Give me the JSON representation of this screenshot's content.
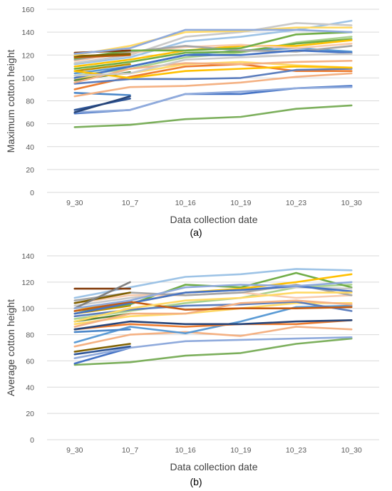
{
  "chart_data": [
    {
      "type": "line",
      "panel_label": "(a)",
      "xlabel": "Data collection date",
      "ylabel": "Maximum cotton height",
      "categories": [
        "9_30",
        "10_7",
        "10_16",
        "10_19",
        "10_23",
        "10_30"
      ],
      "ylim": [
        0,
        160
      ],
      "yticks": [
        0,
        20,
        40,
        60,
        80,
        100,
        120,
        140,
        160
      ],
      "grid": true,
      "legend": "none",
      "series": [
        {
          "color": "#7caf5c",
          "values": [
            57,
            59,
            64,
            66,
            73,
            76
          ]
        },
        {
          "color": "#4472c4",
          "values": [
            69,
            72,
            86,
            86,
            91,
            93
          ]
        },
        {
          "color": "#8faadc",
          "values": [
            70,
            72,
            86,
            88,
            91,
            92
          ]
        },
        {
          "color": "#2e5597",
          "values": [
            72,
            82,
            null,
            null,
            null,
            null
          ]
        },
        {
          "color": "#4a86c8",
          "values": [
            87,
            85,
            null,
            null,
            null,
            null
          ]
        },
        {
          "color": "#f4b183",
          "values": [
            84,
            92,
            93,
            96,
            101,
            104
          ]
        },
        {
          "color": "#ed7d31",
          "values": [
            90,
            101,
            110,
            112,
            106,
            106
          ]
        },
        {
          "color": "#5b7dbd",
          "values": [
            95,
            99,
            99,
            100,
            107,
            108
          ]
        },
        {
          "color": "#ffd966",
          "values": [
            100,
            104,
            112,
            114,
            111,
            109
          ]
        },
        {
          "color": "#548235",
          "values": [
            98,
            105,
            null,
            null,
            null,
            null
          ]
        },
        {
          "color": "#a9d18e",
          "values": [
            102,
            108,
            118,
            122,
            131,
            136
          ]
        },
        {
          "color": "#5b9bd5",
          "values": [
            104,
            110,
            120,
            124,
            126,
            123
          ]
        },
        {
          "color": "#bf9000",
          "values": [
            106,
            112,
            null,
            null,
            null,
            null
          ]
        },
        {
          "color": "#70ad47",
          "values": [
            108,
            114,
            122,
            123,
            130,
            134
          ]
        },
        {
          "color": "#ffc000",
          "values": [
            110,
            116,
            124,
            128,
            128,
            133
          ]
        },
        {
          "color": "#9dc3e6",
          "values": [
            112,
            118,
            132,
            136,
            142,
            150
          ]
        },
        {
          "color": "#c9c9c9",
          "values": [
            113,
            120,
            136,
            140,
            148,
            146
          ]
        },
        {
          "color": "#f8cbad",
          "values": [
            115,
            122,
            127,
            129,
            126,
            130
          ]
        },
        {
          "color": "#a5a5a5",
          "values": [
            116,
            123,
            128,
            124,
            123,
            128
          ]
        },
        {
          "color": "#70ad47",
          "values": [
            117,
            124,
            124,
            126,
            138,
            140
          ]
        },
        {
          "color": "#c55a11",
          "values": [
            118,
            120,
            null,
            null,
            null,
            null
          ]
        },
        {
          "color": "#843c0c",
          "values": [
            122,
            124,
            null,
            null,
            null,
            null
          ]
        },
        {
          "color": "#7f6000",
          "values": [
            119,
            121,
            null,
            null,
            null,
            null
          ]
        },
        {
          "color": "#ffd966",
          "values": [
            120,
            128,
            140,
            141,
            144,
            144
          ]
        },
        {
          "color": "#8faadc",
          "values": [
            121,
            126,
            142,
            142,
            142,
            140
          ]
        },
        {
          "color": "#4472c4",
          "values": [
            100,
            110,
            120,
            120,
            124,
            122
          ]
        },
        {
          "color": "#f4b183",
          "values": [
            96,
            108,
            113,
            112,
            114,
            115
          ]
        },
        {
          "color": "#ffc000",
          "values": [
            106,
            100,
            106,
            108,
            110,
            109
          ]
        },
        {
          "color": "#c9c9c9",
          "values": [
            102,
            104,
            116,
            118,
            120,
            121
          ]
        },
        {
          "color": "#264478",
          "values": [
            70,
            84,
            null,
            null,
            null,
            null
          ]
        }
      ]
    },
    {
      "type": "line",
      "panel_label": "(b)",
      "xlabel": "Data collection date",
      "ylabel": "Average cotton height",
      "categories": [
        "9_30",
        "10_7",
        "10_16",
        "10_19",
        "10_23",
        "10_30"
      ],
      "ylim": [
        0,
        140
      ],
      "yticks": [
        0,
        20,
        40,
        60,
        80,
        100,
        120,
        140
      ],
      "grid": true,
      "legend": "none",
      "series": [
        {
          "color": "#7caf5c",
          "values": [
            57,
            59,
            64,
            66,
            73,
            77
          ]
        },
        {
          "color": "#4472c4",
          "values": [
            58,
            70,
            null,
            null,
            null,
            null
          ]
        },
        {
          "color": "#8faadc",
          "values": [
            62,
            70,
            75,
            76,
            77,
            78
          ]
        },
        {
          "color": "#2e5597",
          "values": [
            65,
            71,
            null,
            null,
            null,
            null
          ]
        },
        {
          "color": "#7f6000",
          "values": [
            67,
            73,
            null,
            null,
            null,
            null
          ]
        },
        {
          "color": "#f4b183",
          "values": [
            71,
            80,
            82,
            79,
            86,
            84
          ]
        },
        {
          "color": "#5b9bd5",
          "values": [
            74,
            86,
            81,
            90,
            101,
            102
          ]
        },
        {
          "color": "#4a86c8",
          "values": [
            82,
            84,
            null,
            null,
            null,
            null
          ]
        },
        {
          "color": "#ed7d31",
          "values": [
            84,
            88,
            86,
            88,
            88,
            91
          ]
        },
        {
          "color": "#ffd966",
          "values": [
            88,
            94,
            96,
            100,
            104,
            104
          ]
        },
        {
          "color": "#548235",
          "values": [
            90,
            96,
            null,
            null,
            null,
            null
          ]
        },
        {
          "color": "#a9d18e",
          "values": [
            92,
            98,
            104,
            108,
            116,
            118
          ]
        },
        {
          "color": "#5b7dbd",
          "values": [
            94,
            99,
            102,
            103,
            105,
            98
          ]
        },
        {
          "color": "#bf9000",
          "values": [
            96,
            102,
            null,
            null,
            null,
            null
          ]
        },
        {
          "color": "#70ad47",
          "values": [
            98,
            103,
            118,
            116,
            127,
            116
          ]
        },
        {
          "color": "#ffc000",
          "values": [
            100,
            104,
            112,
            115,
            120,
            126
          ]
        },
        {
          "color": "#9dc3e6",
          "values": [
            108,
            116,
            124,
            126,
            130,
            129
          ]
        },
        {
          "color": "#c9c9c9",
          "values": [
            102,
            108,
            112,
            114,
            116,
            115
          ]
        },
        {
          "color": "#f8cbad",
          "values": [
            104,
            110,
            110,
            112,
            108,
            110
          ]
        },
        {
          "color": "#a5a5a5",
          "values": [
            106,
            112,
            110,
            112,
            118,
            110
          ]
        },
        {
          "color": "#843c0c",
          "values": [
            115,
            115,
            null,
            null,
            null,
            null
          ]
        },
        {
          "color": "#7f6000",
          "values": [
            104,
            112,
            null,
            null,
            null,
            null
          ]
        },
        {
          "color": "#808080",
          "values": [
            100,
            120,
            null,
            null,
            null,
            null
          ]
        },
        {
          "color": "#4472c4",
          "values": [
            96,
            104,
            112,
            114,
            117,
            113
          ]
        },
        {
          "color": "#f4b183",
          "values": [
            86,
            96,
            96,
            104,
            106,
            103
          ]
        },
        {
          "color": "#c55a11",
          "values": [
            98,
            105,
            99,
            100,
            100,
            101
          ]
        },
        {
          "color": "#ffd966",
          "values": [
            90,
            100,
            106,
            108,
            112,
            112
          ]
        },
        {
          "color": "#8faadc",
          "values": [
            100,
            106,
            116,
            118,
            117,
            120
          ]
        },
        {
          "color": "#264478",
          "values": [
            84,
            90,
            88,
            88,
            90,
            91
          ]
        }
      ]
    }
  ]
}
